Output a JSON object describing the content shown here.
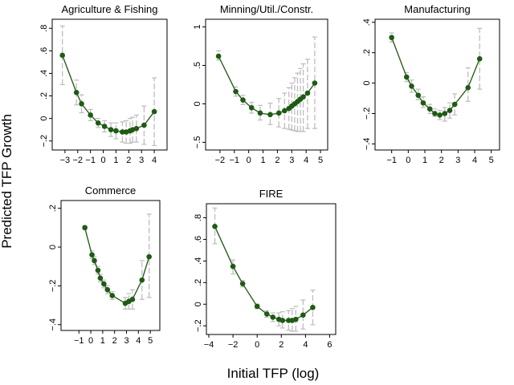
{
  "figure": {
    "ylabel": "Predicted TFP Growth",
    "xlabel": "Initial TFP (log)",
    "colors": {
      "line": "#2d5e1e",
      "marker": "#1f5a14",
      "ci": "#bdbdbd",
      "frame": "#000000"
    }
  },
  "chart_data": [
    {
      "type": "line",
      "title": "Agriculture & Fishing",
      "xticks": [
        -3,
        -2,
        -1,
        0,
        1,
        2,
        3,
        4
      ],
      "xtick_labels": [
        "−3",
        "−2",
        "−1",
        "0",
        "1",
        "2",
        "3",
        "4"
      ],
      "yticks": [
        -0.2,
        0,
        0.2,
        0.4,
        0.6,
        0.8
      ],
      "ytick_labels": [
        "−.2",
        "0",
        ".2",
        ".4",
        ".6",
        ".8"
      ],
      "xlim": [
        -4,
        5
      ],
      "ylim": [
        -0.28,
        0.88
      ],
      "x": [
        -3.2,
        -2.1,
        -1.7,
        -1.0,
        -0.4,
        0.1,
        0.6,
        1.0,
        1.5,
        1.8,
        2.1,
        2.3,
        2.6,
        3.2,
        4.0
      ],
      "y": [
        0.56,
        0.23,
        0.13,
        0.03,
        -0.04,
        -0.07,
        -0.1,
        -0.11,
        -0.12,
        -0.12,
        -0.11,
        -0.1,
        -0.09,
        -0.06,
        0.06
      ],
      "ci_low": [
        0.3,
        0.12,
        0.05,
        -0.02,
        -0.08,
        -0.12,
        -0.16,
        -0.18,
        -0.21,
        -0.22,
        -0.22,
        -0.21,
        -0.21,
        -0.23,
        -0.24
      ],
      "ci_high": [
        0.82,
        0.34,
        0.21,
        0.08,
        0.0,
        -0.02,
        -0.04,
        -0.04,
        -0.03,
        -0.02,
        0.0,
        0.01,
        0.03,
        0.11,
        0.36
      ]
    },
    {
      "type": "line",
      "title": "Minning/Util./Constr.",
      "xticks": [
        -2,
        -1,
        0,
        1,
        2,
        3,
        4,
        5
      ],
      "xtick_labels": [
        "−2",
        "−1",
        "0",
        "1",
        "2",
        "3",
        "4",
        "5"
      ],
      "yticks": [
        -0.5,
        0,
        0.5,
        1
      ],
      "ytick_labels": [
        "−.5",
        "0",
        ".5",
        "1"
      ],
      "xlim": [
        -3,
        5.5
      ],
      "ylim": [
        -0.6,
        1.1
      ],
      "x": [
        -2.1,
        -0.9,
        -0.4,
        0.2,
        0.8,
        1.5,
        2.1,
        2.5,
        2.8,
        3.0,
        3.2,
        3.4,
        3.6,
        3.8,
        4.1,
        4.6
      ],
      "y": [
        0.62,
        0.16,
        0.05,
        -0.05,
        -0.12,
        -0.14,
        -0.12,
        -0.09,
        -0.06,
        -0.03,
        0.0,
        0.03,
        0.06,
        0.09,
        0.14,
        0.27
      ],
      "ci_low": [
        0.57,
        0.1,
        -0.01,
        -0.12,
        -0.21,
        -0.27,
        -0.3,
        -0.32,
        -0.33,
        -0.34,
        -0.35,
        -0.36,
        -0.36,
        -0.36,
        -0.32,
        -0.32
      ],
      "ci_high": [
        0.69,
        0.22,
        0.11,
        0.02,
        -0.02,
        0.01,
        0.07,
        0.14,
        0.21,
        0.27,
        0.34,
        0.4,
        0.46,
        0.52,
        0.58,
        0.87
      ]
    },
    {
      "type": "line",
      "title": "Manufacturing",
      "xticks": [
        -1,
        0,
        1,
        2,
        3,
        4,
        5
      ],
      "xtick_labels": [
        "−1",
        "0",
        "1",
        "2",
        "3",
        "4",
        "5"
      ],
      "yticks": [
        -0.4,
        -0.2,
        0,
        0.2,
        0.4
      ],
      "ytick_labels": [
        "−.4",
        "−.2",
        "0",
        ".2",
        ".4"
      ],
      "xlim": [
        -2,
        5.5
      ],
      "ylim": [
        -0.44,
        0.42
      ],
      "x": [
        -1.0,
        -0.1,
        0.2,
        0.6,
        0.9,
        1.3,
        1.6,
        1.9,
        2.2,
        2.5,
        2.8,
        3.6,
        4.3
      ],
      "y": [
        0.3,
        0.04,
        -0.02,
        -0.08,
        -0.13,
        -0.17,
        -0.2,
        -0.21,
        -0.2,
        -0.18,
        -0.14,
        -0.03,
        0.16
      ],
      "ci_low": [
        0.27,
        0.01,
        -0.06,
        -0.11,
        -0.16,
        -0.2,
        -0.22,
        -0.24,
        -0.25,
        -0.23,
        -0.21,
        -0.12,
        -0.04
      ],
      "ci_high": [
        0.33,
        0.07,
        0.02,
        -0.04,
        -0.09,
        -0.14,
        -0.17,
        -0.18,
        -0.16,
        -0.13,
        -0.07,
        0.1,
        0.36
      ]
    },
    {
      "type": "line",
      "title": "Commerce",
      "xticks": [
        -1,
        0,
        1,
        2,
        3,
        4,
        5
      ],
      "xtick_labels": [
        "−1",
        "0",
        "1",
        "2",
        "3",
        "4",
        "5"
      ],
      "yticks": [
        -0.4,
        -0.2,
        0,
        0.2
      ],
      "ytick_labels": [
        "−.4",
        "−.2",
        "0",
        ".2"
      ],
      "xlim": [
        -2.5,
        5.8
      ],
      "ylim": [
        -0.43,
        0.24
      ],
      "x": [
        -0.5,
        0.1,
        0.3,
        0.6,
        0.8,
        1.1,
        1.4,
        1.8,
        2.9,
        3.2,
        3.5,
        4.3,
        4.9
      ],
      "y": [
        0.1,
        -0.04,
        -0.07,
        -0.12,
        -0.16,
        -0.19,
        -0.22,
        -0.25,
        -0.29,
        -0.28,
        -0.27,
        -0.17,
        -0.05
      ],
      "ci_low": [
        0.09,
        -0.06,
        -0.09,
        -0.14,
        -0.18,
        -0.21,
        -0.24,
        -0.27,
        -0.32,
        -0.32,
        -0.32,
        -0.27,
        -0.26
      ],
      "ci_high": [
        0.11,
        -0.02,
        -0.05,
        -0.1,
        -0.14,
        -0.17,
        -0.2,
        -0.23,
        -0.26,
        -0.24,
        -0.22,
        -0.07,
        0.17
      ]
    },
    {
      "type": "line",
      "title": "FIRE",
      "xticks": [
        -4,
        -2,
        0,
        2,
        4,
        6
      ],
      "xtick_labels": [
        "−4",
        "−2",
        "0",
        "2",
        "4",
        "6"
      ],
      "yticks": [
        -0.2,
        0,
        0.2,
        0.4,
        0.6,
        0.8
      ],
      "ytick_labels": [
        "−.2",
        "0",
        ".2",
        ".4",
        ".6",
        ".8"
      ],
      "xlim": [
        -4.2,
        6.5
      ],
      "ylim": [
        -0.28,
        0.93
      ],
      "x": [
        -3.5,
        -2.0,
        -1.2,
        0.0,
        0.8,
        1.3,
        1.8,
        2.1,
        2.6,
        2.9,
        3.2,
        3.8,
        4.6
      ],
      "y": [
        0.72,
        0.35,
        0.19,
        -0.02,
        -0.09,
        -0.12,
        -0.14,
        -0.15,
        -0.15,
        -0.15,
        -0.14,
        -0.1,
        -0.03
      ],
      "ci_low": [
        0.56,
        0.28,
        0.16,
        -0.04,
        -0.12,
        -0.16,
        -0.2,
        -0.22,
        -0.24,
        -0.25,
        -0.25,
        -0.23,
        -0.19
      ],
      "ci_high": [
        0.89,
        0.41,
        0.22,
        0.0,
        -0.06,
        -0.08,
        -0.08,
        -0.07,
        -0.06,
        -0.04,
        -0.02,
        0.04,
        0.13
      ]
    }
  ]
}
